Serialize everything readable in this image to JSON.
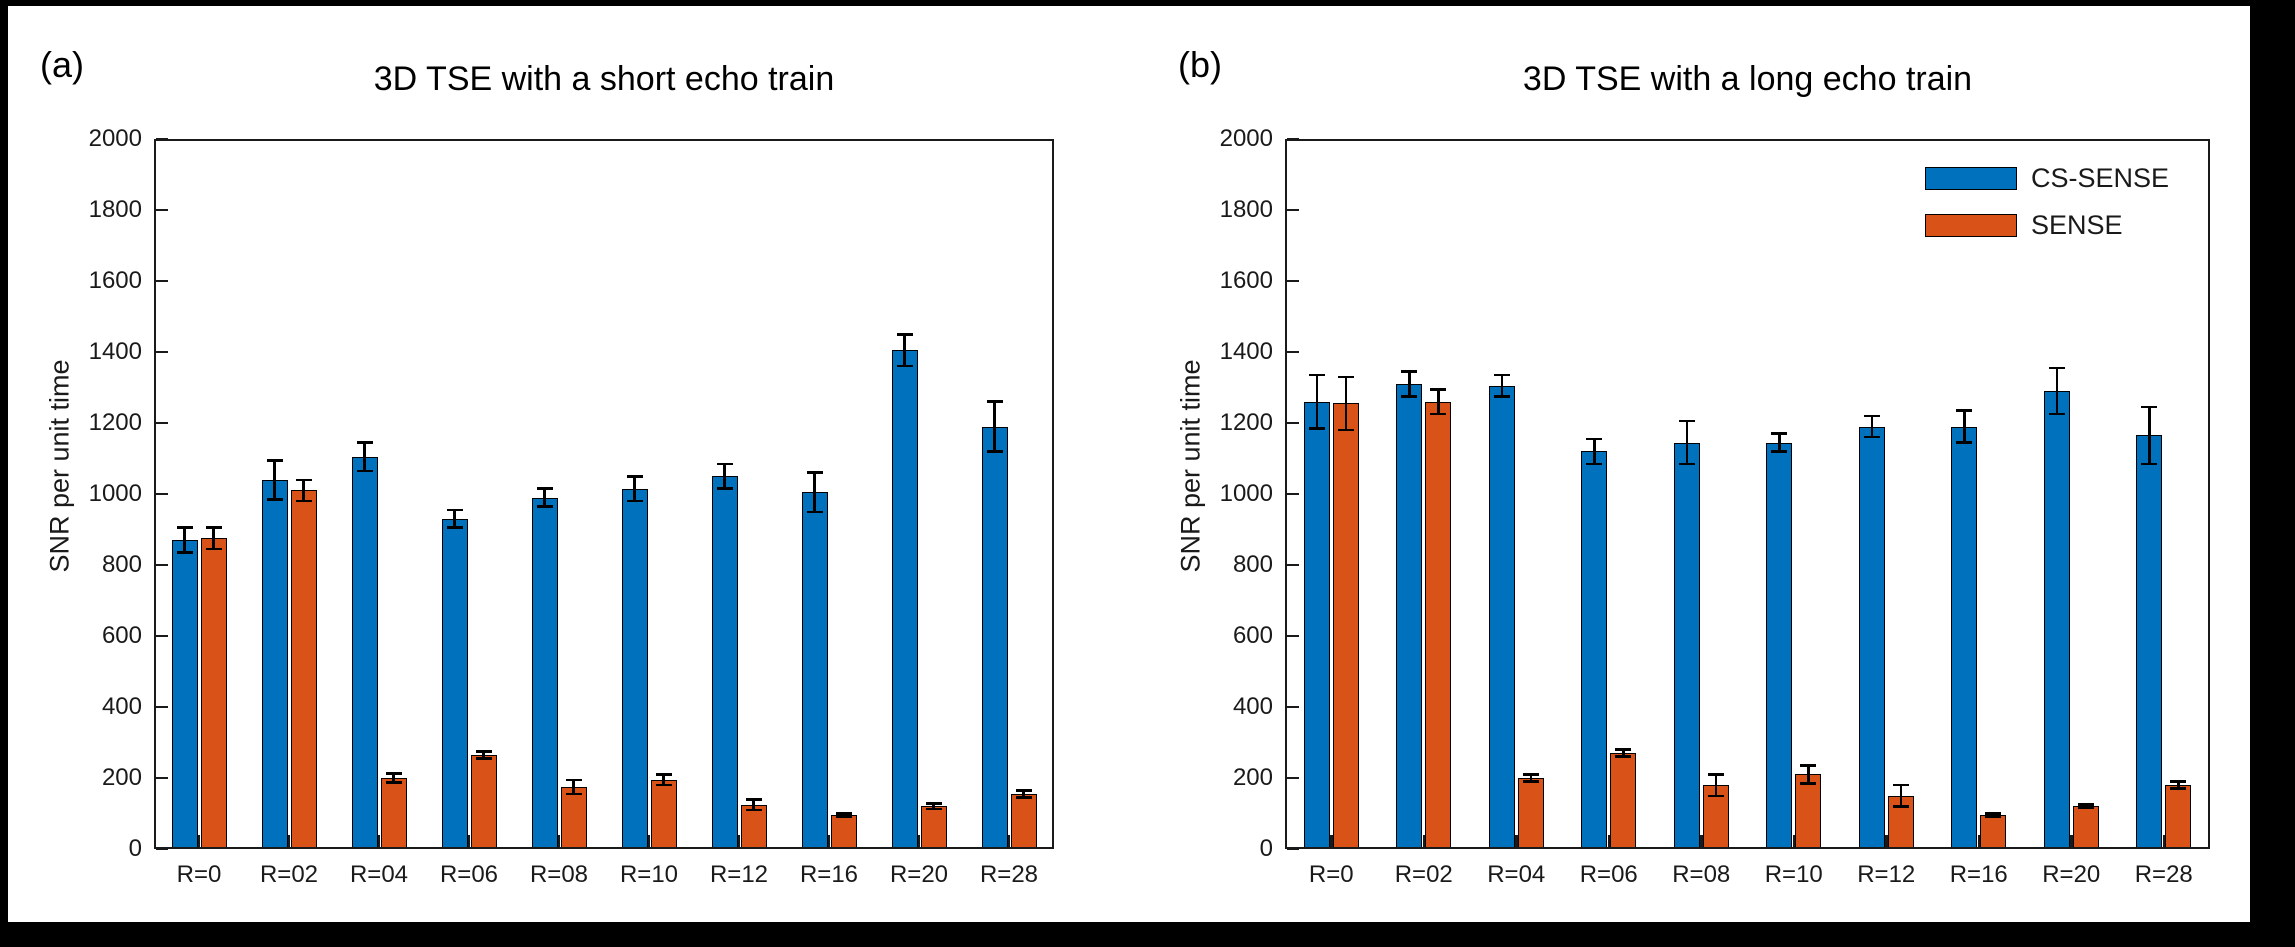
{
  "figure": {
    "background": "#ffffff",
    "frame_color": "#000000"
  },
  "legend": {
    "position": "upper-right-panel-b",
    "entries": [
      {
        "label": "CS-SENSE",
        "color": "#0072BD"
      },
      {
        "label": "SENSE",
        "color": "#D95319"
      }
    ]
  },
  "chart_data": [
    {
      "type": "bar",
      "panel_label": "(a)",
      "title": "3D TSE with a short echo train",
      "xlabel": "",
      "ylabel": "SNR per unit time",
      "ylim": [
        0,
        2000
      ],
      "yticks": [
        0,
        200,
        400,
        600,
        800,
        1000,
        1200,
        1400,
        1600,
        1800,
        2000
      ],
      "grid": false,
      "error_bars": true,
      "categories": [
        "R=0",
        "R=02",
        "R=04",
        "R=06",
        "R=08",
        "R=10",
        "R=12",
        "R=16",
        "R=20",
        "R=28"
      ],
      "series": [
        {
          "name": "CS-SENSE",
          "color": "#0072BD",
          "values": [
            870,
            1040,
            1105,
            930,
            990,
            1015,
            1050,
            1005,
            1405,
            1190
          ],
          "errors": [
            35,
            55,
            40,
            25,
            25,
            35,
            35,
            55,
            45,
            70
          ]
        },
        {
          "name": "SENSE",
          "color": "#D95319",
          "values": [
            875,
            1010,
            200,
            265,
            175,
            195,
            125,
            95,
            120,
            155
          ],
          "errors": [
            30,
            30,
            12,
            10,
            20,
            15,
            15,
            5,
            8,
            10
          ]
        }
      ]
    },
    {
      "type": "bar",
      "panel_label": "(b)",
      "title": "3D TSE with a long echo train",
      "xlabel": "",
      "ylabel": "SNR per unit time",
      "ylim": [
        0,
        2000
      ],
      "yticks": [
        0,
        200,
        400,
        600,
        800,
        1000,
        1200,
        1400,
        1600,
        1800,
        2000
      ],
      "grid": false,
      "error_bars": true,
      "categories": [
        "R=0",
        "R=02",
        "R=04",
        "R=06",
        "R=08",
        "R=10",
        "R=12",
        "R=16",
        "R=20",
        "R=28"
      ],
      "series": [
        {
          "name": "CS-SENSE",
          "color": "#0072BD",
          "values": [
            1260,
            1310,
            1305,
            1120,
            1145,
            1145,
            1190,
            1190,
            1290,
            1165
          ],
          "errors": [
            75,
            35,
            30,
            35,
            60,
            25,
            30,
            45,
            65,
            80
          ]
        },
        {
          "name": "SENSE",
          "color": "#D95319",
          "values": [
            1255,
            1260,
            200,
            270,
            180,
            210,
            150,
            95,
            120,
            180
          ],
          "errors": [
            75,
            35,
            10,
            10,
            30,
            25,
            30,
            5,
            5,
            10
          ]
        }
      ]
    }
  ]
}
